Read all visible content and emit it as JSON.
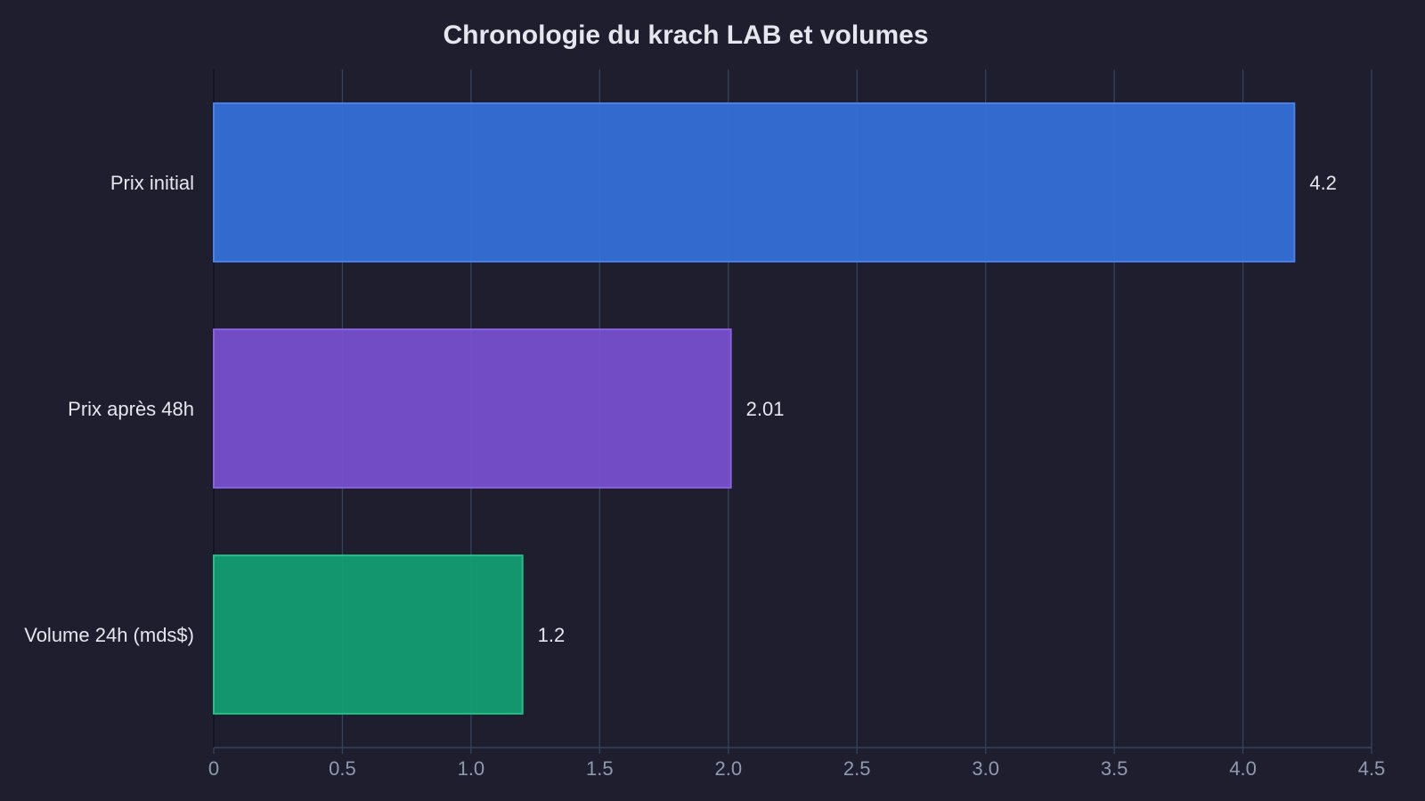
{
  "chart_data": {
    "type": "bar",
    "orientation": "horizontal",
    "title": "Chronologie du krach LAB et volumes",
    "categories": [
      "Prix initial",
      "Prix après 48h",
      "Volume 24h (mds$)"
    ],
    "values": [
      4.2,
      2.01,
      1.2
    ],
    "value_labels": [
      "4.2",
      "2.01",
      "1.2"
    ],
    "xlim": [
      0,
      4.5
    ],
    "x_ticks": [
      0,
      0.5,
      1.0,
      1.5,
      2.0,
      2.5,
      3.0,
      3.5,
      4.0,
      4.5
    ],
    "x_tick_labels": [
      "0",
      "0.5",
      "1.0",
      "1.5",
      "2.0",
      "2.5",
      "3.0",
      "3.5",
      "4.0",
      "4.5"
    ],
    "xlabel": "",
    "ylabel": "",
    "grid": "vertical",
    "legend": "none",
    "bar_colors": [
      "#3570d8",
      "#7750cf",
      "#139e72"
    ],
    "bar_edge_colors": [
      "#4a82ec",
      "#8a62e0",
      "#22c088"
    ],
    "background_color": "#1e1e2e",
    "grid_color": "#34435a"
  }
}
